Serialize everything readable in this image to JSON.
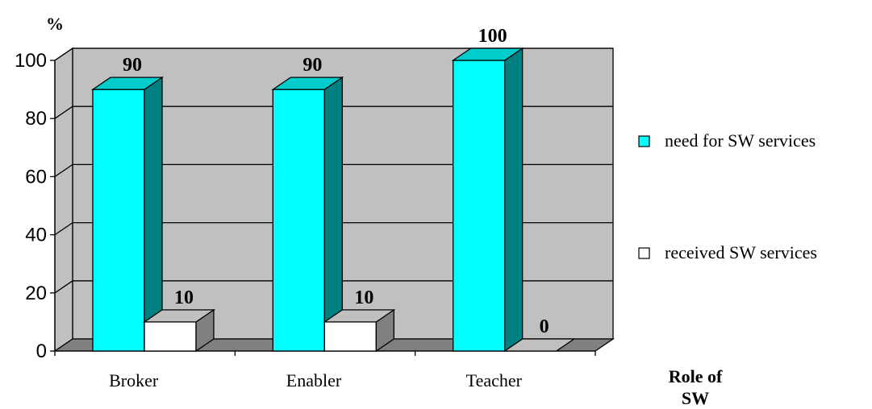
{
  "chart_data": {
    "type": "bar",
    "ylabel": "%",
    "xlabel": "Role of SW",
    "xlabel_lines": [
      "Role of",
      "SW"
    ],
    "categories": [
      "Broker",
      "Enabler",
      "Teacher"
    ],
    "series": [
      {
        "name": "need for SW services",
        "values": [
          90,
          90,
          100
        ],
        "color": "#00FFFF",
        "side_color": "#008080",
        "top_color": "#00CCCC"
      },
      {
        "name": "received SW services",
        "values": [
          10,
          10,
          0
        ],
        "color": "#FFFFFF",
        "side_color": "#808080",
        "top_color": "#C0C0C0"
      }
    ],
    "yticks": [
      "0",
      "20",
      "40",
      "60",
      "80",
      "100"
    ],
    "ylim": [
      0,
      100
    ],
    "grid": true,
    "legend_position": "right",
    "wall_color": "#C0C0C0",
    "floor_color": "#808080"
  }
}
